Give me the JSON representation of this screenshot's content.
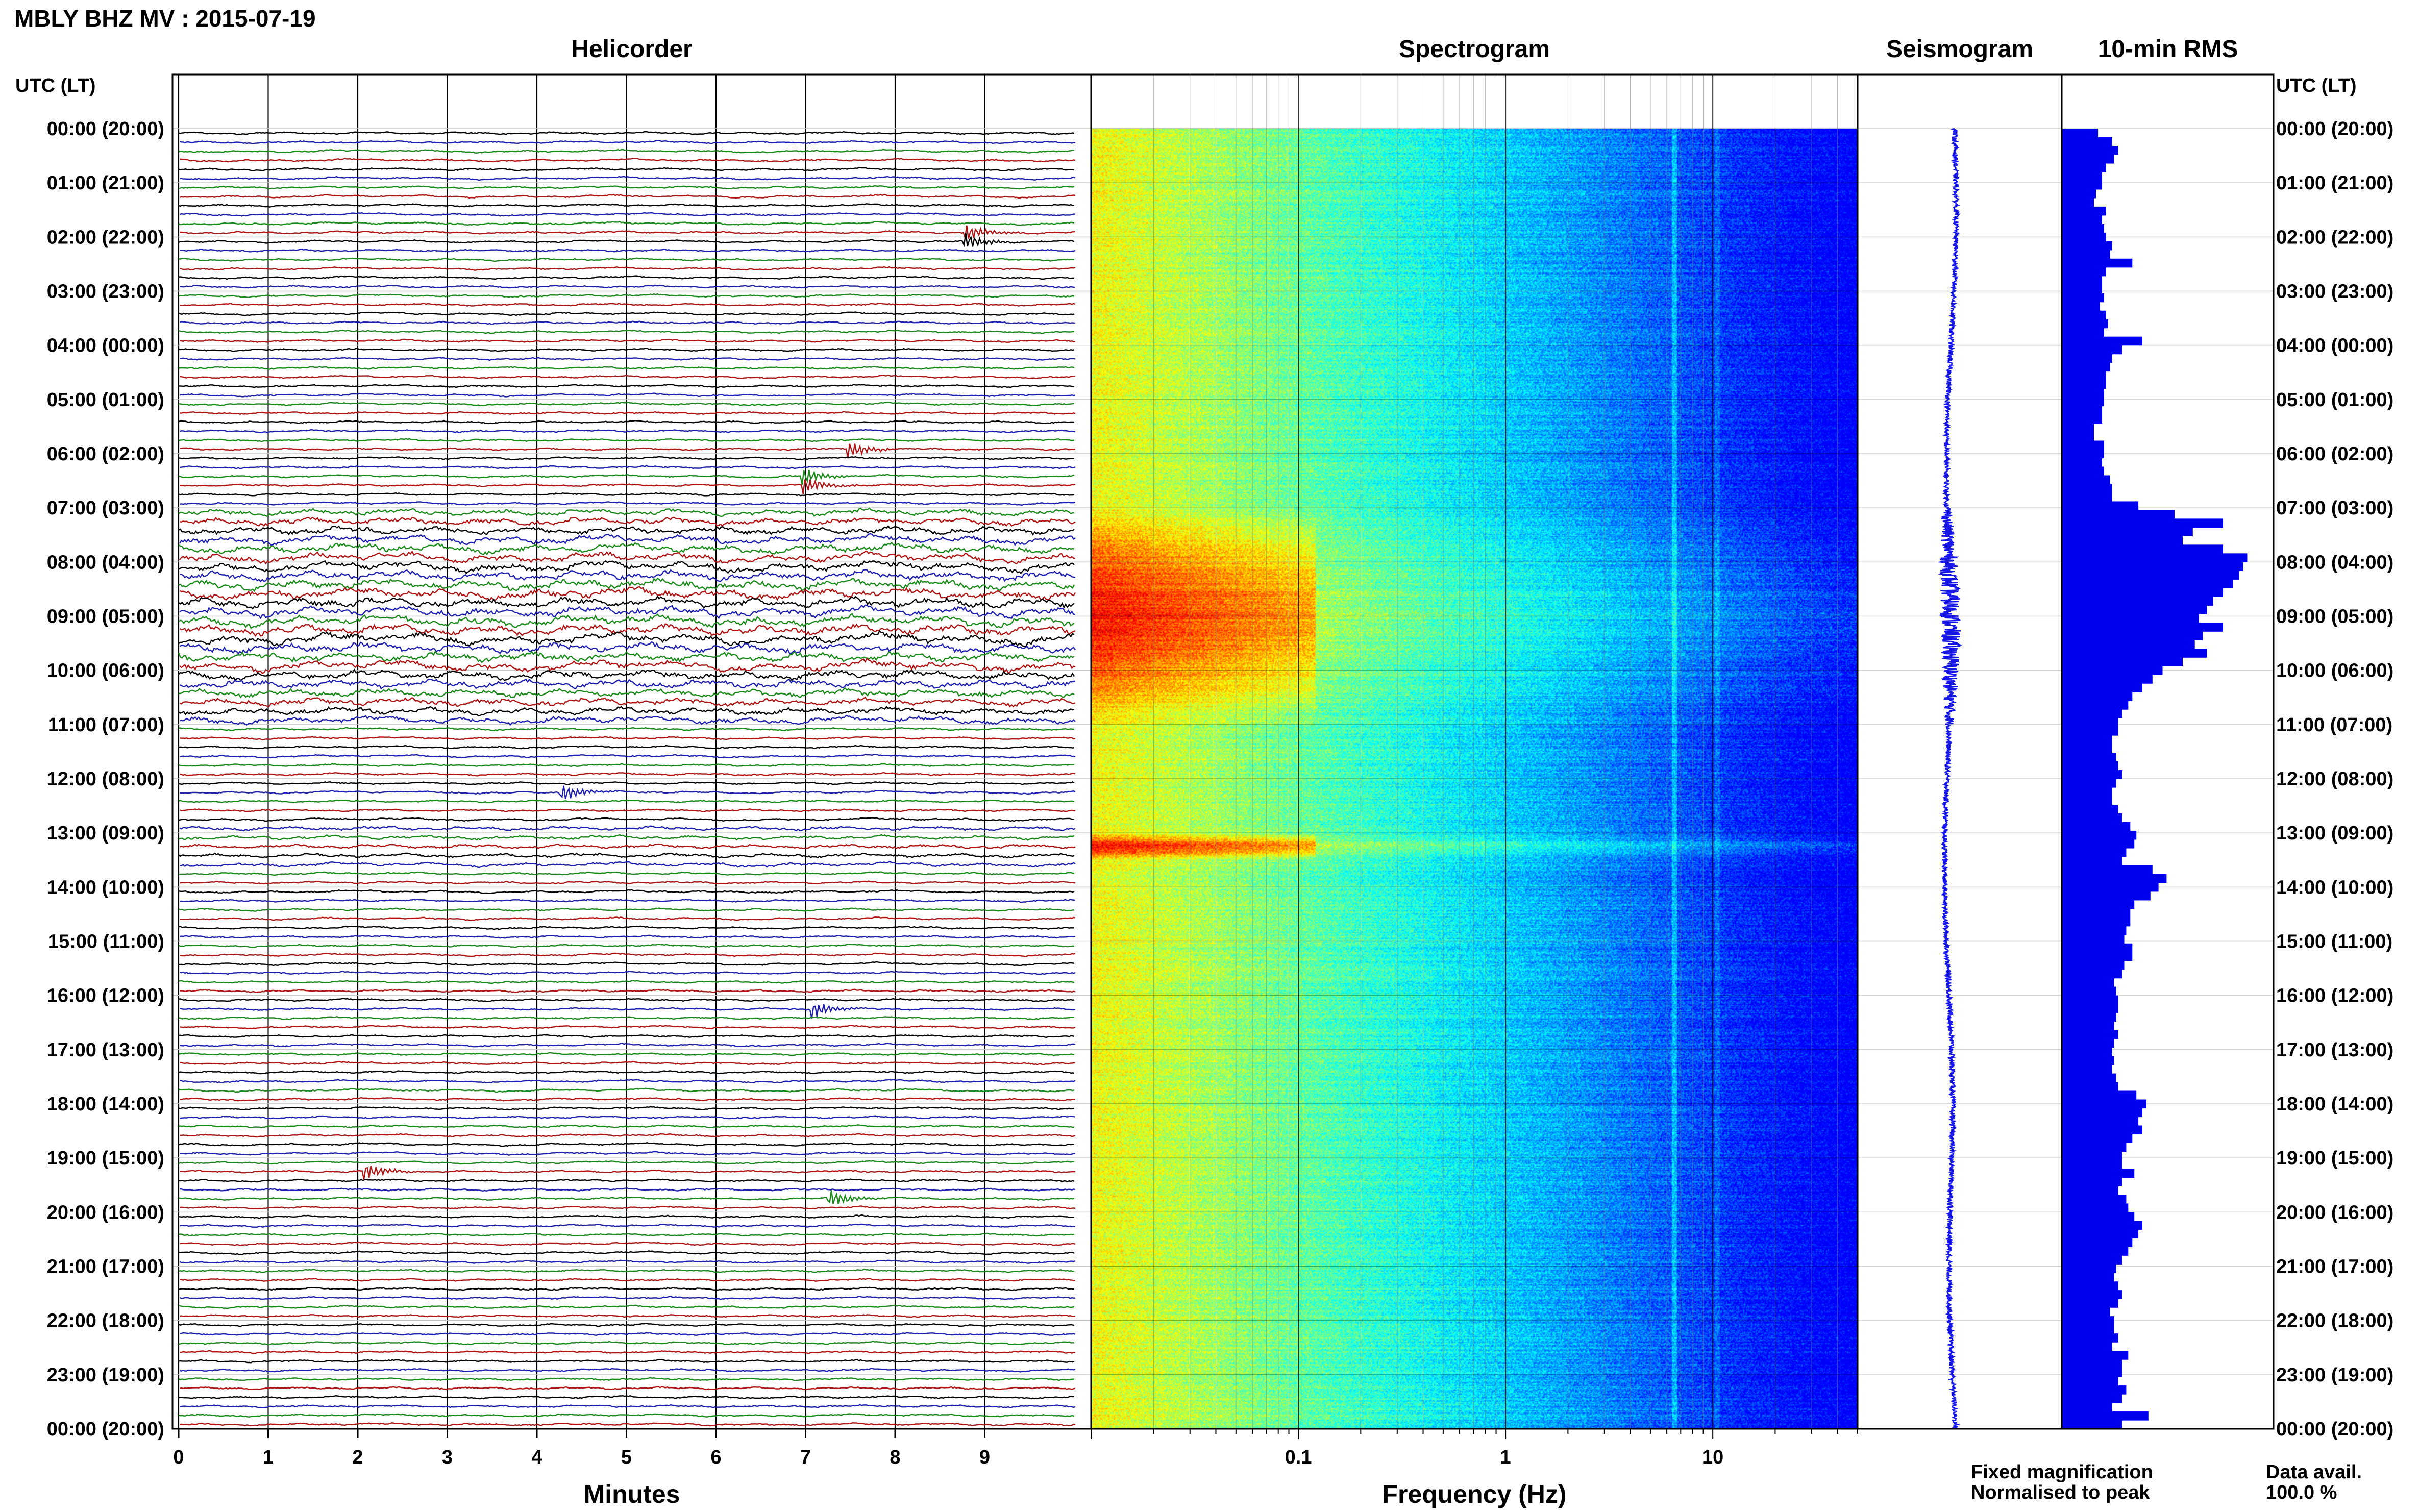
{
  "header": {
    "title": "MBLY BHZ MV : 2015-07-19"
  },
  "panels": {
    "helicorder": "Helicorder",
    "spectrogram": "Spectrogram",
    "seismogram": "Seismogram",
    "rms": "10-min RMS"
  },
  "time_axis": {
    "label_left": "UTC (LT)",
    "label_right": "UTC (LT)",
    "ticks": [
      "00:00 (20:00)",
      "01:00 (21:00)",
      "02:00 (22:00)",
      "03:00 (23:00)",
      "04:00 (00:00)",
      "05:00 (01:00)",
      "06:00 (02:00)",
      "07:00 (03:00)",
      "08:00 (04:00)",
      "09:00 (05:00)",
      "10:00 (06:00)",
      "11:00 (07:00)",
      "12:00 (08:00)",
      "13:00 (09:00)",
      "14:00 (10:00)",
      "15:00 (11:00)",
      "16:00 (12:00)",
      "17:00 (13:00)",
      "18:00 (14:00)",
      "19:00 (15:00)",
      "20:00 (16:00)",
      "21:00 (17:00)",
      "22:00 (18:00)",
      "23:00 (19:00)",
      "00:00 (20:00)"
    ]
  },
  "legend": {
    "fixed": "Fixed magnification",
    "fixed_color": "#1515e6",
    "normalised": "Normalised to peak",
    "normalised_color": "#e61515",
    "data_avail_label": "Data avail.",
    "data_avail_value": "100.0 %"
  },
  "chart_data": [
    {
      "type": "line",
      "panel": "helicorder",
      "xlabel": "Minutes",
      "xticks": [
        "0",
        "1",
        "2",
        "3",
        "4",
        "5",
        "6",
        "7",
        "8",
        "9"
      ],
      "xlim": [
        0,
        10
      ],
      "ylim_hours": [
        0,
        24
      ],
      "traces_per_hour": 6,
      "trace_colors": [
        "#000000",
        "#1f1fb0",
        "#1a8a1a",
        "#b01515"
      ],
      "events": [
        {
          "hour": 2.0,
          "minute": 8.8,
          "color": "#000000"
        },
        {
          "hour": 5.9,
          "minute": 7.5,
          "color": "#000000"
        },
        {
          "hour": 6.5,
          "minute": 7.0,
          "color": "#1a8a1a"
        },
        {
          "hour": 12.3,
          "minute": 4.3,
          "color": "#1f1fb0"
        },
        {
          "hour": 16.3,
          "minute": 7.1,
          "color": "#1f1fb0"
        },
        {
          "hour": 19.2,
          "minute": 2.1,
          "color": "#000000"
        },
        {
          "hour": 19.8,
          "minute": 7.3,
          "color": "#1a8a1a"
        }
      ]
    },
    {
      "type": "heatmap",
      "panel": "spectrogram",
      "xlabel": "Frequency (Hz)",
      "xticks": [
        "0.1",
        "1",
        "10"
      ],
      "xscale": "log",
      "xlim": [
        0.01,
        50
      ],
      "ylim_hours": [
        0,
        24
      ],
      "colormap": "jet",
      "noisy_periods_hours": [
        [
          7.0,
          11.0
        ],
        [
          13.0,
          13.5
        ]
      ]
    },
    {
      "type": "line",
      "panel": "seismogram",
      "ylim_hours": [
        0,
        24
      ],
      "color": "#1515e6"
    },
    {
      "type": "bar",
      "panel": "rms",
      "orientation": "horizontal",
      "interval_minutes": 10,
      "color": "#0000ee",
      "values": [
        0.18,
        0.25,
        0.28,
        0.26,
        0.22,
        0.2,
        0.2,
        0.17,
        0.16,
        0.22,
        0.2,
        0.21,
        0.22,
        0.25,
        0.24,
        0.35,
        0.22,
        0.2,
        0.2,
        0.21,
        0.19,
        0.22,
        0.23,
        0.21,
        0.4,
        0.3,
        0.25,
        0.24,
        0.22,
        0.22,
        0.21,
        0.21,
        0.2,
        0.2,
        0.16,
        0.16,
        0.21,
        0.21,
        0.2,
        0.21,
        0.24,
        0.25,
        0.25,
        0.38,
        0.56,
        0.8,
        0.65,
        0.6,
        0.8,
        0.92,
        0.9,
        0.88,
        0.85,
        0.8,
        0.75,
        0.72,
        0.68,
        0.8,
        0.7,
        0.66,
        0.72,
        0.6,
        0.5,
        0.45,
        0.4,
        0.35,
        0.33,
        0.3,
        0.28,
        0.28,
        0.25,
        0.25,
        0.27,
        0.28,
        0.3,
        0.27,
        0.25,
        0.25,
        0.28,
        0.3,
        0.34,
        0.37,
        0.36,
        0.32,
        0.3,
        0.45,
        0.52,
        0.48,
        0.44,
        0.36,
        0.34,
        0.34,
        0.32,
        0.31,
        0.35,
        0.35,
        0.31,
        0.3,
        0.26,
        0.27,
        0.28,
        0.28,
        0.27,
        0.26,
        0.28,
        0.26,
        0.25,
        0.26,
        0.25,
        0.27,
        0.28,
        0.37,
        0.42,
        0.4,
        0.38,
        0.4,
        0.35,
        0.32,
        0.3,
        0.3,
        0.36,
        0.3,
        0.28,
        0.32,
        0.33,
        0.36,
        0.4,
        0.38,
        0.35,
        0.33,
        0.3,
        0.27,
        0.26,
        0.28,
        0.3,
        0.28,
        0.24,
        0.26,
        0.26,
        0.28,
        0.25,
        0.33,
        0.3,
        0.3,
        0.28,
        0.32,
        0.3,
        0.25,
        0.43,
        0.3
      ]
    }
  ]
}
